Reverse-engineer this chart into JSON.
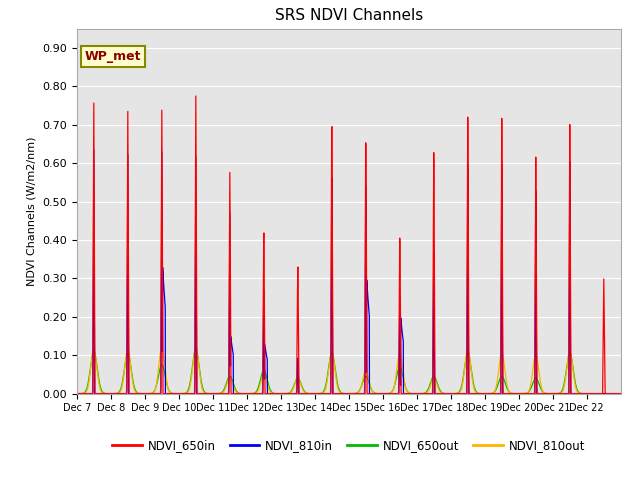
{
  "title": "SRS NDVI Channels",
  "ylabel": "NDVI Channels (W/m2/nm)",
  "xlabel": "",
  "ylim": [
    0.0,
    0.95
  ],
  "yticks": [
    0.0,
    0.1,
    0.2,
    0.3,
    0.4,
    0.5,
    0.6,
    0.7,
    0.8,
    0.9
  ],
  "xtick_labels": [
    "Dec 7",
    "Dec 8",
    "Dec 9",
    "Dec 10",
    "Dec 11",
    "Dec 12",
    "Dec 13",
    "Dec 14",
    "Dec 15",
    "Dec 16",
    "Dec 17",
    "Dec 18",
    "Dec 19",
    "Dec 20",
    "Dec 21",
    "Dec 22"
  ],
  "background_color": "#e5e5e5",
  "annotation_text": "WP_met",
  "annotation_color": "#8B0000",
  "annotation_bg": "#ffffcc",
  "colors": {
    "NDVI_650in": "#FF0000",
    "NDVI_810in": "#0000EE",
    "NDVI_650out": "#00BB00",
    "NDVI_810out": "#FFB300"
  },
  "day_peaks": {
    "Dec 7": {
      "r650in": 0.76,
      "r810in": 0.64,
      "r810in_low": 0.0,
      "r650out": 0.11,
      "r810out": 0.115
    },
    "Dec 8": {
      "r650in": 0.745,
      "r810in": 0.635,
      "r810in_low": 0.0,
      "r650out": 0.105,
      "r810out": 0.115
    },
    "Dec 9": {
      "r650in": 0.755,
      "r810in": 0.65,
      "r810in_low": 0.33,
      "r650out": 0.075,
      "r810out": 0.12
    },
    "Dec 10": {
      "r650in": 0.8,
      "r810in": 0.645,
      "r810in_low": 0.0,
      "r650out": 0.115,
      "r810out": 0.12
    },
    "Dec 11": {
      "r650in": 0.6,
      "r810in": 0.5,
      "r810in_low": 0.15,
      "r650out": 0.045,
      "r810out": 0.04
    },
    "Dec 12": {
      "r650in": 0.44,
      "r810in": 0.29,
      "r810in_low": 0.13,
      "r650out": 0.06,
      "r810out": 0.05
    },
    "Dec 13": {
      "r650in": 0.35,
      "r810in": 0.1,
      "r810in_low": 0.0,
      "r650out": 0.04,
      "r810out": 0.04
    },
    "Dec 14": {
      "r650in": 0.745,
      "r810in": 0.62,
      "r810in_low": 0.0,
      "r650out": 0.105,
      "r810out": 0.11
    },
    "Dec 15": {
      "r650in": 0.7,
      "r810in": 0.595,
      "r810in_low": 0.3,
      "r650out": 0.045,
      "r810out": 0.06
    },
    "Dec 16": {
      "r650in": 0.43,
      "r810in": 0.26,
      "r810in_low": 0.2,
      "r650out": 0.07,
      "r810out": 0.105
    },
    "Dec 17": {
      "r650in": 0.66,
      "r810in": 0.4,
      "r810in_low": 0.0,
      "r650out": 0.045,
      "r810out": 0.04
    },
    "Dec 18": {
      "r650in": 0.75,
      "r810in": 0.63,
      "r810in_low": 0.0,
      "r650out": 0.105,
      "r810out": 0.115
    },
    "Dec 19": {
      "r650in": 0.74,
      "r810in": 0.625,
      "r810in_low": 0.0,
      "r650out": 0.045,
      "r810out": 0.105
    },
    "Dec 20": {
      "r650in": 0.63,
      "r810in": 0.545,
      "r810in_low": 0.0,
      "r650out": 0.04,
      "r810out": 0.1
    },
    "Dec 21": {
      "r650in": 0.71,
      "r810in": 0.615,
      "r810in_low": 0.0,
      "r650out": 0.105,
      "r810out": 0.11
    },
    "Dec 22": {
      "r650in": 0.3,
      "r810in": 0.0,
      "r810in_low": 0.0,
      "r650out": 0.0,
      "r810out": 0.0
    }
  }
}
